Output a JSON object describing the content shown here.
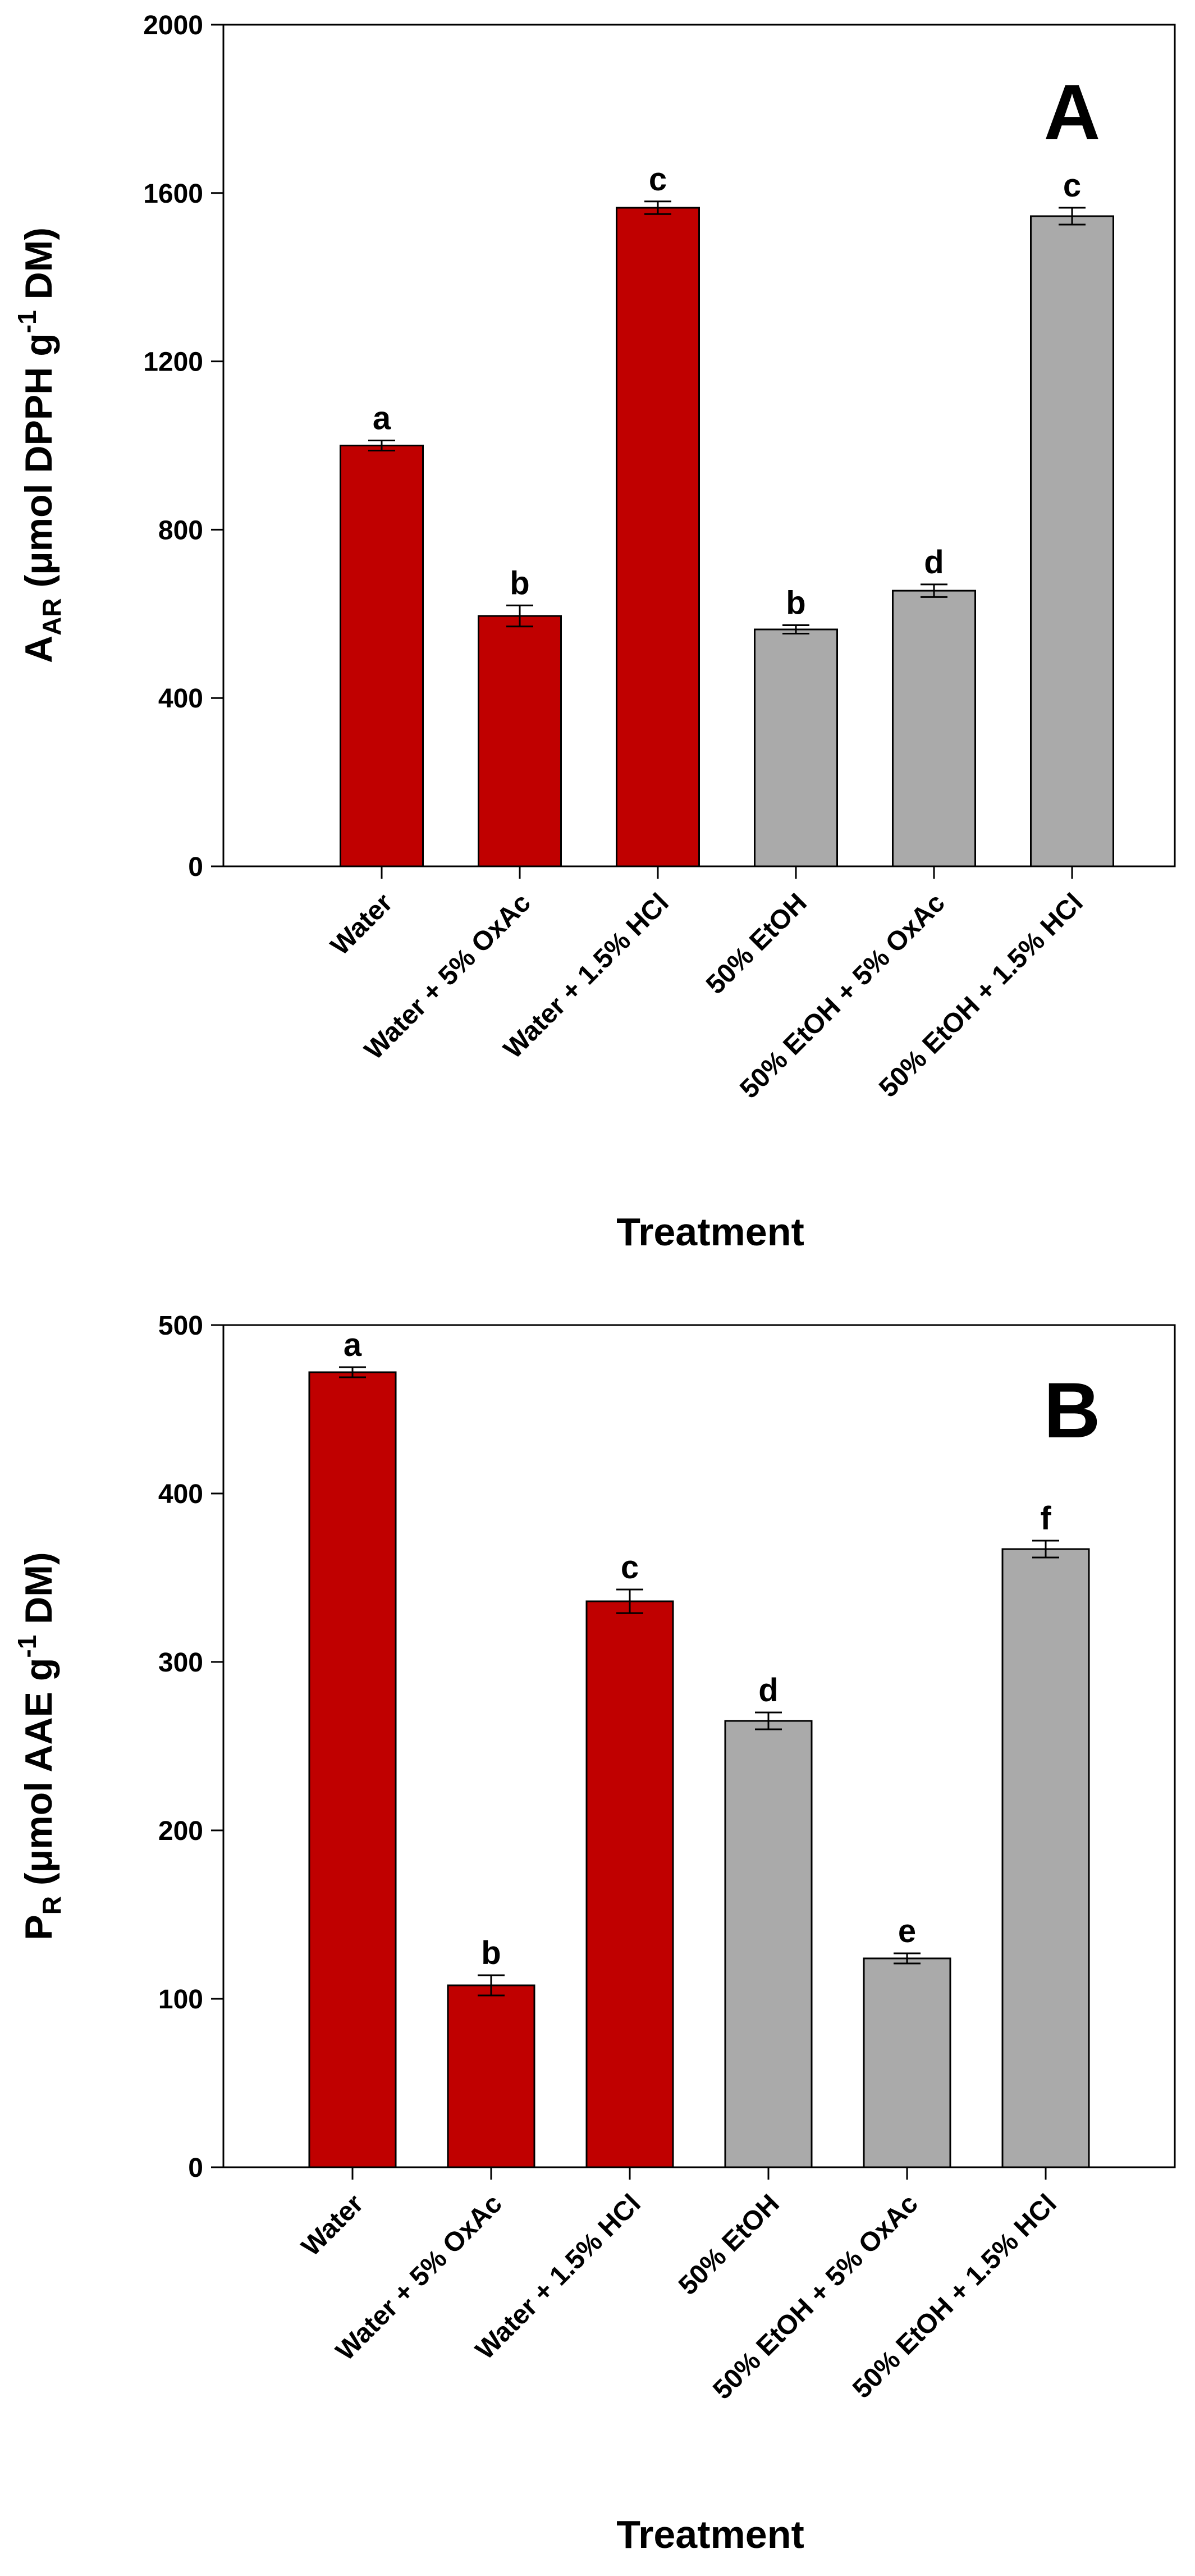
{
  "colors": {
    "water_series": "#c00000",
    "ethanol_series": "#aaaaaa",
    "axis": "#000000",
    "bar_edge": "#000000"
  },
  "chart_data": [
    {
      "type": "bar",
      "panel_label": "A",
      "ylabel_main": "A",
      "ylabel_sub": "AR",
      "ylabel_rest": " (μmol DPPH g",
      "ylabel_sup": "-1",
      "ylabel_end": " DM)",
      "xlabel": "Treatment",
      "ylim": [
        0,
        2000
      ],
      "yticks": [
        "0",
        "400",
        "800",
        "1200",
        "1600",
        "2000"
      ],
      "categories": [
        "Water",
        "Water + 5% OxAc",
        "Water + 1.5% HCl",
        "50% EtOH",
        "50% EtOH + 5% OxAc",
        "50% EtOH + 1.5% HCl"
      ],
      "values": [
        1000,
        595,
        1565,
        563,
        655,
        1545
      ],
      "errors": [
        12,
        25,
        15,
        10,
        15,
        20
      ],
      "significance": [
        "a",
        "b",
        "c",
        "b",
        "d",
        "c"
      ],
      "series_of_bar": [
        "water",
        "water",
        "water",
        "ethanol",
        "ethanol",
        "ethanol"
      ]
    },
    {
      "type": "bar",
      "panel_label": "B",
      "ylabel_main": "P",
      "ylabel_sub": "R",
      "ylabel_rest": " (μmol AAE g",
      "ylabel_sup": "-1",
      "ylabel_end": " DM)",
      "xlabel": "Treatment",
      "ylim": [
        0,
        500
      ],
      "yticks": [
        "0",
        "100",
        "200",
        "300",
        "400",
        "500"
      ],
      "categories": [
        "Water",
        "Water + 5% OxAc",
        "Water + 1.5% HCl",
        "50% EtOH",
        "50% EtOH + 5% OxAc",
        "50% EtOH + 1.5% HCl"
      ],
      "values": [
        472,
        108,
        336,
        265,
        124,
        367
      ],
      "errors": [
        3,
        6,
        7,
        5,
        3,
        5
      ],
      "significance": [
        "a",
        "b",
        "c",
        "d",
        "e",
        "f"
      ],
      "series_of_bar": [
        "water",
        "water",
        "water",
        "ethanol",
        "ethanol",
        "ethanol"
      ]
    }
  ]
}
